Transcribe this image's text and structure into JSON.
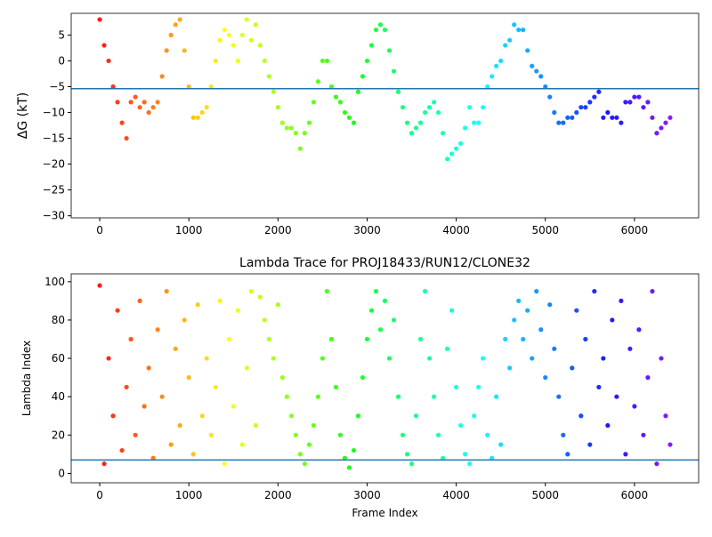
{
  "chart_data": [
    {
      "type": "scatter",
      "ylabel": "ΔG (kT)",
      "colormap": "rainbow_r",
      "hline": -5.4,
      "hline_color": "#1f77b4",
      "xlim": [
        -320,
        6720
      ],
      "ylim": [
        -30.4,
        9.2
      ],
      "xticks": [
        0,
        1000,
        2000,
        3000,
        4000,
        5000,
        6000
      ],
      "yticks": [
        {
          "value": -30,
          "label": "−30"
        },
        {
          "value": -25,
          "label": "−25"
        },
        {
          "value": -20,
          "label": "−20"
        },
        {
          "value": -15,
          "label": "−15"
        },
        {
          "value": -10,
          "label": "−10"
        },
        {
          "value": -5,
          "label": "−5"
        },
        0,
        5
      ],
      "x": [
        0,
        50,
        100,
        150,
        200,
        250,
        300,
        350,
        400,
        450,
        500,
        550,
        600,
        650,
        700,
        750,
        800,
        850,
        900,
        950,
        1000,
        1050,
        1100,
        1150,
        1200,
        1250,
        1300,
        1350,
        1400,
        1450,
        1500,
        1550,
        1600,
        1650,
        1700,
        1750,
        1800,
        1850,
        1900,
        1950,
        2000,
        2050,
        2100,
        2150,
        2200,
        2250,
        2300,
        2350,
        2400,
        2450,
        2500,
        2550,
        2600,
        2650,
        2700,
        2750,
        2800,
        2850,
        2900,
        2950,
        3000,
        3050,
        3100,
        3150,
        3200,
        3250,
        3300,
        3350,
        3400,
        3450,
        3500,
        3550,
        3600,
        3650,
        3700,
        3750,
        3800,
        3850,
        3900,
        3950,
        4000,
        4050,
        4100,
        4150,
        4200,
        4250,
        4300,
        4350,
        4400,
        4450,
        4500,
        4550,
        4600,
        4650,
        4700,
        4750,
        4800,
        4850,
        4900,
        4950,
        5000,
        5050,
        5100,
        5150,
        5200,
        5250,
        5300,
        5350,
        5400,
        5450,
        5500,
        5550,
        5600,
        5650,
        5700,
        5750,
        5800,
        5850,
        5900,
        5950,
        6000,
        6050,
        6100,
        6150,
        6200,
        6250,
        6300,
        6350,
        6400
      ],
      "values": [
        8,
        3,
        0,
        -5,
        -8,
        -12,
        -15,
        -8,
        -7,
        -9,
        -8,
        -10,
        -9,
        -8,
        -3,
        2,
        5,
        7,
        8,
        2,
        -5,
        -11,
        -11,
        -10,
        -9,
        -5,
        0,
        4,
        6,
        5,
        3,
        0,
        5,
        8,
        4,
        7,
        3,
        0,
        -3,
        -6,
        -9,
        -12,
        -13,
        -13,
        -14,
        -17,
        -14,
        -12,
        -8,
        -4,
        0,
        0,
        -5,
        -7,
        -8,
        -10,
        -11,
        -12,
        -6,
        -3,
        0,
        3,
        6,
        7,
        6,
        2,
        -2,
        -6,
        -9,
        -12,
        -14,
        -13,
        -12,
        -10,
        -9,
        -8,
        -10,
        -14,
        -19,
        -18,
        -17,
        -16,
        -13,
        -9,
        -12,
        -12,
        -9,
        -5,
        -3,
        -1,
        0,
        3,
        4,
        7,
        6,
        6,
        2,
        -1,
        -2,
        -3,
        -5,
        -7,
        -10,
        -12,
        -12,
        -11,
        -11,
        -10,
        -9,
        -9,
        -8,
        -7,
        -6,
        -11,
        -10,
        -11,
        -11,
        -12,
        -8,
        -8,
        -7,
        -7,
        -9,
        -8,
        -11,
        -14,
        -13,
        -12,
        -11
      ]
    },
    {
      "type": "scatter",
      "title": "Lambda Trace for PROJ18433/RUN12/CLONE32",
      "xlabel": "Frame Index",
      "ylabel": "Lambda Index",
      "colormap": "rainbow_r",
      "hline": 7,
      "hline_color": "#1f77b4",
      "xlim": [
        -320,
        6720
      ],
      "ylim": [
        -4.9,
        104.1
      ],
      "xticks": [
        0,
        1000,
        2000,
        3000,
        4000,
        5000,
        6000
      ],
      "yticks": [
        0,
        20,
        40,
        60,
        80,
        100
      ],
      "x": [
        0,
        50,
        100,
        150,
        200,
        250,
        300,
        350,
        400,
        450,
        500,
        550,
        600,
        650,
        700,
        750,
        800,
        850,
        900,
        950,
        1000,
        1050,
        1100,
        1150,
        1200,
        1250,
        1300,
        1350,
        1400,
        1450,
        1500,
        1550,
        1600,
        1650,
        1700,
        1750,
        1800,
        1850,
        1900,
        1950,
        2000,
        2050,
        2100,
        2150,
        2200,
        2250,
        2300,
        2350,
        2400,
        2450,
        2500,
        2550,
        2600,
        2650,
        2700,
        2750,
        2800,
        2850,
        2900,
        2950,
        3000,
        3050,
        3100,
        3150,
        3200,
        3250,
        3300,
        3350,
        3400,
        3450,
        3500,
        3550,
        3600,
        3650,
        3700,
        3750,
        3800,
        3850,
        3900,
        3950,
        4000,
        4050,
        4100,
        4150,
        4200,
        4250,
        4300,
        4350,
        4400,
        4450,
        4500,
        4550,
        4600,
        4650,
        4700,
        4750,
        4800,
        4850,
        4900,
        4950,
        5000,
        5050,
        5100,
        5150,
        5200,
        5250,
        5300,
        5350,
        5400,
        5450,
        5500,
        5550,
        5600,
        5650,
        5700,
        5750,
        5800,
        5850,
        5900,
        5950,
        6000,
        6050,
        6100,
        6150,
        6200,
        6250,
        6300,
        6350,
        6400
      ],
      "values": [
        98,
        5,
        60,
        30,
        85,
        12,
        45,
        70,
        20,
        90,
        35,
        55,
        8,
        75,
        40,
        95,
        15,
        65,
        25,
        80,
        50,
        10,
        88,
        30,
        60,
        20,
        45,
        90,
        5,
        70,
        35,
        85,
        15,
        55,
        95,
        25,
        92,
        80,
        70,
        60,
        88,
        50,
        40,
        30,
        20,
        10,
        5,
        15,
        25,
        40,
        60,
        95,
        70,
        45,
        20,
        8,
        3,
        12,
        30,
        50,
        70,
        85,
        95,
        75,
        90,
        60,
        80,
        40,
        20,
        10,
        5,
        30,
        70,
        95,
        60,
        40,
        20,
        8,
        65,
        85,
        45,
        25,
        10,
        5,
        30,
        45,
        60,
        20,
        8,
        40,
        15,
        70,
        55,
        80,
        90,
        70,
        85,
        60,
        95,
        75,
        50,
        88,
        65,
        40,
        20,
        10,
        55,
        85,
        30,
        70,
        15,
        95,
        45,
        60,
        25,
        80,
        40,
        90,
        10,
        65,
        35,
        75,
        20,
        50,
        95,
        5,
        60,
        30,
        15
      ]
    }
  ]
}
